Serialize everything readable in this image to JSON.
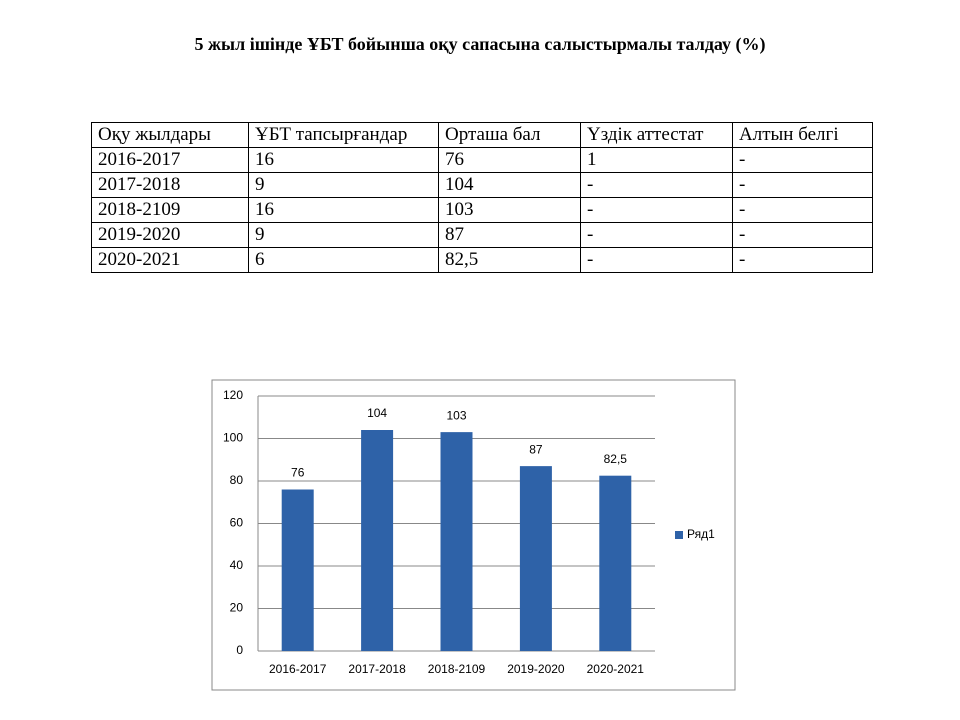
{
  "title": "5  жыл ішінде ҰБТ бойынша оқу сапасына салыстырмалы талдау (%)",
  "table": {
    "header": [
      "Оқу жылдары",
      "ҰБТ тапсырғандар",
      "Орташа бал",
      "Үздік аттестат",
      "Алтын белгі"
    ],
    "rows": [
      [
        "2016-2017",
        "16",
        "76",
        "1",
        "-"
      ],
      [
        "2017-2018",
        "9",
        "104",
        "-",
        "-"
      ],
      [
        "2018-2109",
        "16",
        "103",
        "-",
        "-"
      ],
      [
        "2019-2020",
        "9",
        "87",
        "-",
        "-"
      ],
      [
        "2020-2021",
        "6",
        "82,5",
        "-",
        "-"
      ]
    ]
  },
  "chart_data": {
    "type": "bar",
    "categories": [
      "2016-2017",
      "2017-2018",
      "2018-2109",
      "2019-2020",
      "2020-2021"
    ],
    "series": [
      {
        "name": "Ряд1",
        "color": "#2e62a8",
        "values": [
          76,
          104,
          103,
          87,
          82.5
        ],
        "value_labels": [
          "76",
          "104",
          "103",
          "87",
          "82,5"
        ]
      }
    ],
    "ylim": [
      0,
      120
    ],
    "yticks": [
      0,
      20,
      40,
      60,
      80,
      100,
      120
    ],
    "grid": true,
    "legend": "right"
  }
}
